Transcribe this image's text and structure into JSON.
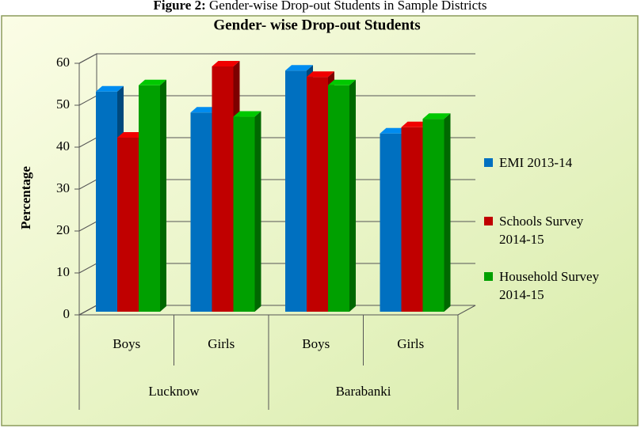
{
  "chart_data": {
    "type": "bar3d",
    "caption_label": "Figure 2:",
    "caption": "Gender-wise Drop-out Students in Sample Districts",
    "title": "Gender- wise Drop-out Students",
    "y_label": "Percentage",
    "categories": [
      "Boys",
      "Girls",
      "Boys",
      "Girls"
    ],
    "groups": [
      "Lucknow",
      "Barabanki"
    ],
    "series": [
      {
        "name": "EMI 2013-14",
        "color": "#0070c0",
        "values": [
          52.5,
          47.5,
          57.5,
          42.5
        ]
      },
      {
        "name": "Schools Survey 2014-15",
        "color": "#c00000",
        "values": [
          41.5,
          58.5,
          56,
          44
        ]
      },
      {
        "name": "Household Survey 2014-15",
        "color": "#00a000",
        "values": [
          54,
          46.5,
          54,
          46
        ]
      }
    ],
    "ylim": [
      0,
      60
    ],
    "yticks": [
      0,
      10,
      20,
      30,
      40,
      50,
      60
    ],
    "grid": true,
    "legend": "right"
  }
}
